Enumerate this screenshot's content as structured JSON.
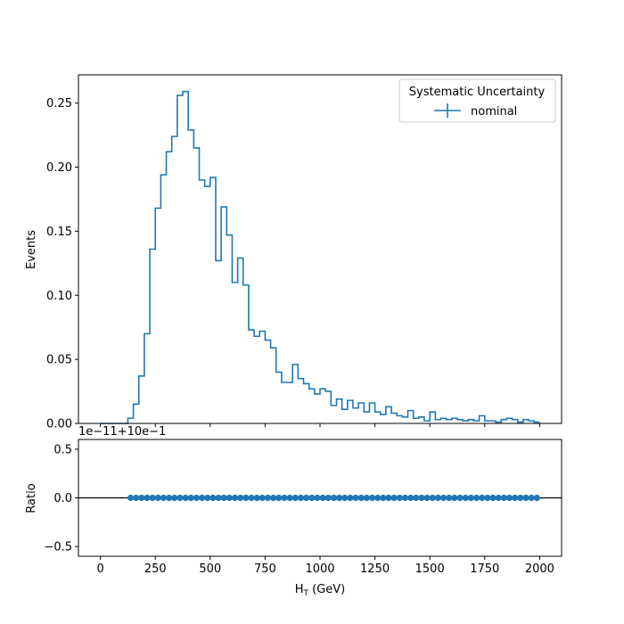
{
  "chart_data": [
    {
      "type": "histogram",
      "panel": "main",
      "ylabel": "Events",
      "xlim": [
        -100,
        2100
      ],
      "ylim": [
        0,
        0.272
      ],
      "xticks": [
        0,
        250,
        500,
        750,
        1000,
        1250,
        1500,
        1750,
        2000
      ],
      "yticks": [
        0.0,
        0.05,
        0.1,
        0.15,
        0.2,
        0.25
      ],
      "ytick_labels": [
        "0.00",
        "0.05",
        "0.10",
        "0.15",
        "0.20",
        "0.25"
      ],
      "bin_edges": [
        0,
        25,
        50,
        75,
        100,
        125,
        150,
        175,
        200,
        225,
        250,
        275,
        300,
        325,
        350,
        375,
        400,
        425,
        450,
        475,
        500,
        525,
        550,
        575,
        600,
        625,
        650,
        675,
        700,
        725,
        750,
        775,
        800,
        825,
        850,
        875,
        900,
        925,
        950,
        975,
        1000,
        1025,
        1050,
        1075,
        1100,
        1125,
        1150,
        1175,
        1200,
        1225,
        1250,
        1275,
        1300,
        1325,
        1350,
        1375,
        1400,
        1425,
        1450,
        1475,
        1500,
        1525,
        1550,
        1575,
        1600,
        1625,
        1650,
        1675,
        1700,
        1725,
        1750,
        1775,
        1800,
        1825,
        1850,
        1875,
        1900,
        1925,
        1950,
        1975,
        2000
      ],
      "series": [
        {
          "name": "nominal",
          "color": "#1f77b4",
          "values": [
            0,
            0,
            0,
            0,
            0,
            0.004,
            0.015,
            0.037,
            0.07,
            0.136,
            0.168,
            0.194,
            0.212,
            0.224,
            0.256,
            0.259,
            0.229,
            0.215,
            0.19,
            0.185,
            0.192,
            0.127,
            0.169,
            0.147,
            0.11,
            0.129,
            0.108,
            0.073,
            0.068,
            0.072,
            0.065,
            0.059,
            0.04,
            0.032,
            0.032,
            0.046,
            0.035,
            0.031,
            0.027,
            0.023,
            0.027,
            0.025,
            0.014,
            0.019,
            0.011,
            0.018,
            0.012,
            0.016,
            0.009,
            0.016,
            0.009,
            0.007,
            0.013,
            0.008,
            0.006,
            0.005,
            0.01,
            0.004,
            0.005,
            0.002,
            0.009,
            0.003,
            0.004,
            0.003,
            0.004,
            0.003,
            0.002,
            0.003,
            0.002,
            0.006,
            0.002,
            0.002,
            0.001,
            0.003,
            0.004,
            0.003,
            0.001,
            0.003,
            0.002,
            0.001
          ]
        }
      ],
      "legend": {
        "title": "Systematic Uncertainty",
        "entries": [
          "nominal"
        ],
        "location": "top-right"
      }
    },
    {
      "type": "scatter",
      "panel": "ratio",
      "xlabel": "H_T (GeV)",
      "xlabel_main": "H",
      "xlabel_sub": "T",
      "xlabel_unit": " (GeV)",
      "ylabel": "Ratio",
      "offset_text": "1e−11+10e−1",
      "xlim": [
        -100,
        2100
      ],
      "ylim": [
        -0.6,
        0.6
      ],
      "xticks": [
        0,
        250,
        500,
        750,
        1000,
        1250,
        1500,
        1750,
        2000
      ],
      "yticks": [
        -0.5,
        0.0,
        0.5
      ],
      "ytick_labels": [
        "−0.5",
        "0.0",
        "0.5"
      ],
      "reference_line": 0.0,
      "x_start": 137.5,
      "x_step": 25,
      "n_points": 75,
      "y_value": 0.0,
      "color": "#1f77b4"
    }
  ]
}
